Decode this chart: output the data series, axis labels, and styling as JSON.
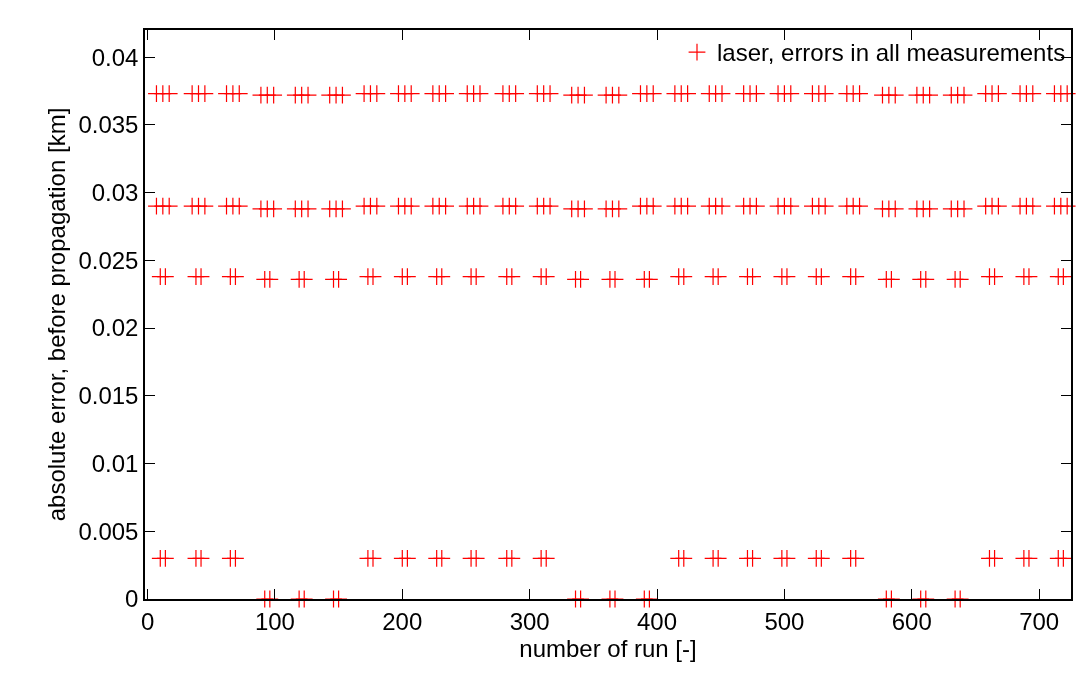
{
  "chart_data": {
    "type": "scatter",
    "xlabel": "number of run [-]",
    "ylabel": "absolute error, before propagation [km]",
    "xlim": [
      -2,
      725
    ],
    "xticks": [
      0,
      100,
      200,
      300,
      400,
      500,
      600,
      700
    ],
    "ylim": [
      0,
      0.042
    ],
    "yticks": [
      0,
      0.005,
      0.01,
      0.015,
      0.02,
      0.025,
      0.03,
      0.035,
      0.04
    ],
    "legend": "top right",
    "marker": "cross",
    "series": [
      {
        "name": "laser, errors in all measurements",
        "color": "#ff0000",
        "x": [
          7,
          12,
          17,
          35,
          40,
          45,
          62,
          67,
          72,
          89,
          94,
          99,
          116,
          121,
          126,
          143,
          148,
          153,
          170,
          175,
          180,
          197,
          202,
          207,
          224,
          229,
          234,
          251,
          256,
          261,
          279,
          284,
          289,
          306,
          311,
          316,
          333,
          338,
          343,
          360,
          365,
          370,
          387,
          392,
          397,
          414,
          419,
          424,
          441,
          446,
          451,
          468,
          473,
          478,
          495,
          500,
          505,
          522,
          527,
          532,
          549,
          554,
          559,
          577,
          582,
          587,
          604,
          609,
          614,
          631,
          636,
          641,
          658,
          663,
          668,
          685,
          690,
          695,
          712,
          717,
          722
        ],
        "values": [
          0.0373,
          0.0373,
          0.0373,
          0.0373,
          0.0373,
          0.0373,
          0.0373,
          0.0373,
          0.0373,
          0.0372,
          0.0372,
          0.0372,
          0.0372,
          0.0372,
          0.0372,
          0.0372,
          0.0372,
          0.0372,
          0.0373,
          0.0373,
          0.0373,
          0.0373,
          0.0373,
          0.0373,
          0.0373,
          0.0373,
          0.0373,
          0.0373,
          0.0373,
          0.0373,
          0.0373,
          0.0373,
          0.0373,
          0.0373,
          0.0373,
          0.0373,
          0.0372,
          0.0372,
          0.0372,
          0.0372,
          0.0372,
          0.0372,
          0.0373,
          0.0373,
          0.0373,
          0.0373,
          0.0373,
          0.0373,
          0.0373,
          0.0373,
          0.0373,
          0.0373,
          0.0373,
          0.0373,
          0.0373,
          0.0373,
          0.0373,
          0.0373,
          0.0373,
          0.0373,
          0.0373,
          0.0373,
          0.0373,
          0.0372,
          0.0372,
          0.0372,
          0.0372,
          0.0372,
          0.0372,
          0.0372,
          0.0372,
          0.0372,
          0.0373,
          0.0373,
          0.0373,
          0.0373,
          0.0373,
          0.0373,
          0.0373,
          0.0373,
          0.0373
        ]
      },
      {
        "color": "#ff0000",
        "x": [
          7,
          12,
          17,
          35,
          40,
          45,
          62,
          67,
          72,
          89,
          94,
          99,
          116,
          121,
          126,
          143,
          148,
          153,
          170,
          175,
          180,
          197,
          202,
          207,
          224,
          229,
          234,
          251,
          256,
          261,
          279,
          284,
          289,
          306,
          311,
          316,
          333,
          338,
          343,
          360,
          365,
          370,
          387,
          392,
          397,
          414,
          419,
          424,
          441,
          446,
          451,
          468,
          473,
          478,
          495,
          500,
          505,
          522,
          527,
          532,
          549,
          554,
          559,
          577,
          582,
          587,
          604,
          609,
          614,
          631,
          636,
          641,
          658,
          663,
          668,
          685,
          690,
          695,
          712,
          717,
          722
        ],
        "values": [
          0.029,
          0.029,
          0.029,
          0.029,
          0.029,
          0.029,
          0.029,
          0.029,
          0.029,
          0.0288,
          0.0288,
          0.0288,
          0.0288,
          0.0288,
          0.0288,
          0.0288,
          0.0288,
          0.0288,
          0.029,
          0.029,
          0.029,
          0.029,
          0.029,
          0.029,
          0.029,
          0.029,
          0.029,
          0.029,
          0.029,
          0.029,
          0.029,
          0.029,
          0.029,
          0.029,
          0.029,
          0.029,
          0.0288,
          0.0288,
          0.0288,
          0.0288,
          0.0288,
          0.0288,
          0.029,
          0.029,
          0.029,
          0.029,
          0.029,
          0.029,
          0.029,
          0.029,
          0.029,
          0.029,
          0.029,
          0.029,
          0.029,
          0.029,
          0.029,
          0.029,
          0.029,
          0.029,
          0.029,
          0.029,
          0.029,
          0.0288,
          0.0288,
          0.0288,
          0.0288,
          0.0288,
          0.0288,
          0.0288,
          0.0288,
          0.0288,
          0.029,
          0.029,
          0.029,
          0.029,
          0.029,
          0.029,
          0.029,
          0.029,
          0.029
        ]
      },
      {
        "color": "#ff0000",
        "x": [
          10,
          14,
          38,
          42,
          65,
          69,
          92,
          96,
          119,
          123,
          146,
          150,
          173,
          177,
          200,
          204,
          227,
          231,
          254,
          258,
          282,
          286,
          309,
          313,
          336,
          340,
          363,
          367,
          390,
          394,
          417,
          421,
          444,
          448,
          471,
          475,
          498,
          502,
          525,
          529,
          552,
          556,
          580,
          584,
          607,
          611,
          634,
          638,
          661,
          665,
          688,
          692,
          715,
          719
        ],
        "values": [
          0.0238,
          0.0238,
          0.0238,
          0.0238,
          0.0238,
          0.0238,
          0.0236,
          0.0236,
          0.0236,
          0.0236,
          0.0236,
          0.0236,
          0.0238,
          0.0238,
          0.0238,
          0.0238,
          0.0238,
          0.0238,
          0.0238,
          0.0238,
          0.0238,
          0.0238,
          0.0238,
          0.0238,
          0.0236,
          0.0236,
          0.0236,
          0.0236,
          0.0236,
          0.0236,
          0.0238,
          0.0238,
          0.0238,
          0.0238,
          0.0238,
          0.0238,
          0.0238,
          0.0238,
          0.0238,
          0.0238,
          0.0238,
          0.0238,
          0.0236,
          0.0236,
          0.0236,
          0.0236,
          0.0236,
          0.0236,
          0.0238,
          0.0238,
          0.0238,
          0.0238,
          0.0238,
          0.0238
        ]
      },
      {
        "color": "#ff0000",
        "x": [
          10,
          14,
          38,
          42,
          65,
          69,
          92,
          96,
          119,
          123,
          146,
          150,
          173,
          177,
          200,
          204,
          227,
          231,
          254,
          258,
          282,
          286,
          309,
          313,
          336,
          340,
          363,
          367,
          390,
          394,
          417,
          421,
          444,
          448,
          471,
          475,
          498,
          502,
          525,
          529,
          552,
          556,
          580,
          584,
          607,
          611,
          634,
          638,
          661,
          665,
          688,
          692,
          715,
          719
        ],
        "values": [
          0.003,
          0.003,
          0.003,
          0.003,
          0.003,
          0.003,
          0,
          0,
          0,
          0,
          0,
          0,
          0.003,
          0.003,
          0.003,
          0.003,
          0.003,
          0.003,
          0.003,
          0.003,
          0.003,
          0.003,
          0.003,
          0.003,
          0,
          0,
          0,
          0,
          0,
          0,
          0.003,
          0.003,
          0.003,
          0.003,
          0.003,
          0.003,
          0.003,
          0.003,
          0.003,
          0.003,
          0.003,
          0.003,
          0,
          0,
          0,
          0,
          0,
          0,
          0.003,
          0.003,
          0.003,
          0.003,
          0.003,
          0.003
        ]
      }
    ]
  }
}
